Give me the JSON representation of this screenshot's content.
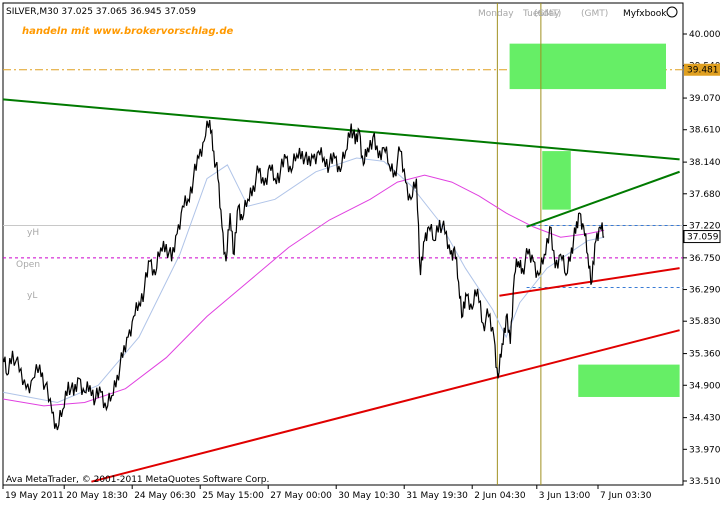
{
  "chart_data": {
    "type": "line",
    "symbol_header": "SILVER,M30  37.025 37.065 36.945 37.059",
    "watermark": "handeln mit www.brokervorschlag.de",
    "session_labels": [
      "Monday",
      "Tuesday",
      "(GMT)",
      "(GMT)"
    ],
    "brand": "Myfxbook",
    "copyright": "Ava MetaTrader, © 2001-2011 MetaQuotes Software Corp.",
    "level_labels": {
      "yh": "yH",
      "open": "Open",
      "yl": "yL"
    },
    "y_ticks": [
      "40.000",
      "39.540",
      "39.070",
      "38.610",
      "38.140",
      "37.680",
      "37.220",
      "36.750",
      "36.290",
      "35.830",
      "35.360",
      "34.900",
      "34.430",
      "33.970",
      "33.510"
    ],
    "x_ticks": [
      "19 May 2011",
      "20 May 18:30",
      "24 May 06:30",
      "25 May 15:00",
      "27 May 00:00",
      "30 May 10:30",
      "31 May 19:30",
      "2 Jun 04:30",
      "3 Jun 13:00",
      "7 Jun 03:30"
    ],
    "ylim": [
      33.51,
      40.0
    ],
    "current_price": "37.059",
    "level_price": "39.481",
    "levels": {
      "yh": 37.22,
      "open": 36.75,
      "yl": 36.32,
      "h_orange": 39.481
    },
    "price_points": [
      [
        0,
        35.3
      ],
      [
        0.006,
        35.05
      ],
      [
        0.014,
        35.4
      ],
      [
        0.024,
        35.1
      ],
      [
        0.034,
        34.85
      ],
      [
        0.044,
        35.0
      ],
      [
        0.054,
        35.2
      ],
      [
        0.062,
        34.9
      ],
      [
        0.072,
        34.5
      ],
      [
        0.08,
        34.25
      ],
      [
        0.088,
        34.55
      ],
      [
        0.096,
        34.95
      ],
      [
        0.104,
        34.75
      ],
      [
        0.112,
        35.0
      ],
      [
        0.12,
        34.8
      ],
      [
        0.128,
        34.9
      ],
      [
        0.136,
        34.7
      ],
      [
        0.144,
        34.8
      ],
      [
        0.152,
        34.55
      ],
      [
        0.16,
        34.75
      ],
      [
        0.168,
        35.05
      ],
      [
        0.176,
        35.3
      ],
      [
        0.184,
        35.6
      ],
      [
        0.192,
        35.9
      ],
      [
        0.2,
        36.1
      ],
      [
        0.208,
        36.3
      ],
      [
        0.216,
        36.7
      ],
      [
        0.224,
        36.5
      ],
      [
        0.232,
        36.9
      ],
      [
        0.24,
        36.95
      ],
      [
        0.248,
        36.7
      ],
      [
        0.256,
        37.1
      ],
      [
        0.264,
        37.5
      ],
      [
        0.272,
        37.6
      ],
      [
        0.28,
        37.9
      ],
      [
        0.288,
        38.2
      ],
      [
        0.296,
        38.45
      ],
      [
        0.304,
        38.75
      ],
      [
        0.31,
        38.3
      ],
      [
        0.316,
        37.9
      ],
      [
        0.322,
        37.2
      ],
      [
        0.328,
        36.7
      ],
      [
        0.334,
        37.4
      ],
      [
        0.34,
        36.8
      ],
      [
        0.346,
        37.5
      ],
      [
        0.352,
        37.3
      ],
      [
        0.36,
        37.6
      ],
      [
        0.368,
        37.8
      ],
      [
        0.376,
        38.0
      ],
      [
        0.384,
        37.8
      ],
      [
        0.392,
        38.1
      ],
      [
        0.4,
        37.9
      ],
      [
        0.408,
        38.0
      ],
      [
        0.416,
        38.2
      ],
      [
        0.424,
        38.0
      ],
      [
        0.432,
        38.25
      ],
      [
        0.44,
        38.3
      ],
      [
        0.448,
        38.1
      ],
      [
        0.456,
        38.2
      ],
      [
        0.464,
        38.3
      ],
      [
        0.472,
        38.2
      ],
      [
        0.48,
        38.1
      ],
      [
        0.488,
        38.2
      ],
      [
        0.496,
        38.0
      ],
      [
        0.504,
        38.3
      ],
      [
        0.512,
        38.7
      ],
      [
        0.518,
        38.4
      ],
      [
        0.524,
        38.6
      ],
      [
        0.53,
        38.1
      ],
      [
        0.536,
        38.35
      ],
      [
        0.544,
        38.5
      ],
      [
        0.552,
        38.2
      ],
      [
        0.56,
        38.35
      ],
      [
        0.568,
        38.1
      ],
      [
        0.576,
        38.0
      ],
      [
        0.584,
        38.3
      ],
      [
        0.592,
        37.85
      ],
      [
        0.6,
        37.6
      ],
      [
        0.608,
        37.9
      ],
      [
        0.614,
        36.5
      ],
      [
        0.62,
        37.0
      ],
      [
        0.626,
        37.2
      ],
      [
        0.634,
        37.0
      ],
      [
        0.642,
        37.3
      ],
      [
        0.65,
        37.1
      ],
      [
        0.658,
        36.8
      ],
      [
        0.664,
        36.9
      ],
      [
        0.67,
        36.4
      ],
      [
        0.676,
        35.9
      ],
      [
        0.682,
        36.2
      ],
      [
        0.69,
        36.0
      ],
      [
        0.698,
        36.3
      ],
      [
        0.706,
        35.8
      ],
      [
        0.714,
        35.9
      ],
      [
        0.722,
        35.6
      ],
      [
        0.728,
        35.0
      ],
      [
        0.734,
        35.5
      ],
      [
        0.74,
        35.9
      ],
      [
        0.746,
        35.5
      ],
      [
        0.752,
        36.5
      ],
      [
        0.758,
        36.7
      ],
      [
        0.764,
        36.6
      ],
      [
        0.772,
        36.8
      ],
      [
        0.78,
        36.7
      ],
      [
        0.788,
        36.5
      ],
      [
        0.796,
        36.8
      ],
      [
        0.804,
        37.2
      ],
      [
        0.812,
        36.6
      ],
      [
        0.82,
        36.8
      ],
      [
        0.828,
        36.5
      ],
      [
        0.836,
        36.9
      ],
      [
        0.842,
        37.1
      ],
      [
        0.848,
        37.4
      ],
      [
        0.854,
        37.2
      ],
      [
        0.86,
        36.8
      ],
      [
        0.866,
        36.4
      ],
      [
        0.872,
        37.0
      ],
      [
        0.878,
        37.2
      ],
      [
        0.884,
        37.05
      ]
    ],
    "ma_fast_points": [
      [
        0,
        34.8
      ],
      [
        0.08,
        34.65
      ],
      [
        0.14,
        34.9
      ],
      [
        0.2,
        35.6
      ],
      [
        0.26,
        36.8
      ],
      [
        0.3,
        37.9
      ],
      [
        0.33,
        38.1
      ],
      [
        0.36,
        37.5
      ],
      [
        0.4,
        37.6
      ],
      [
        0.46,
        38.0
      ],
      [
        0.52,
        38.2
      ],
      [
        0.56,
        38.15
      ],
      [
        0.6,
        37.8
      ],
      [
        0.64,
        37.3
      ],
      [
        0.68,
        36.6
      ],
      [
        0.72,
        36.0
      ],
      [
        0.74,
        35.6
      ],
      [
        0.76,
        36.1
      ],
      [
        0.8,
        36.6
      ],
      [
        0.86,
        37.0
      ],
      [
        0.884,
        37.05
      ]
    ],
    "ma_slow_points": [
      [
        0,
        34.7
      ],
      [
        0.06,
        34.6
      ],
      [
        0.12,
        34.65
      ],
      [
        0.18,
        34.85
      ],
      [
        0.24,
        35.3
      ],
      [
        0.3,
        35.9
      ],
      [
        0.36,
        36.4
      ],
      [
        0.42,
        36.9
      ],
      [
        0.48,
        37.3
      ],
      [
        0.54,
        37.6
      ],
      [
        0.58,
        37.85
      ],
      [
        0.62,
        37.95
      ],
      [
        0.66,
        37.85
      ],
      [
        0.7,
        37.65
      ],
      [
        0.74,
        37.4
      ],
      [
        0.78,
        37.2
      ],
      [
        0.82,
        37.05
      ],
      [
        0.86,
        37.1
      ],
      [
        0.884,
        37.15
      ]
    ],
    "trendlines": [
      {
        "color": "#007a00",
        "from": [
          0.0,
          39.05
        ],
        "to": [
          0.995,
          38.18
        ]
      },
      {
        "color": "#007a00",
        "from": [
          0.77,
          37.2
        ],
        "to": [
          0.995,
          38.0
        ]
      },
      {
        "color": "#e00000",
        "from": [
          0.13,
          33.5
        ],
        "to": [
          0.995,
          35.7
        ]
      },
      {
        "color": "#e00000",
        "from": [
          0.73,
          36.2
        ],
        "to": [
          0.995,
          36.6
        ]
      }
    ],
    "boxes": [
      {
        "color": "#66ee66",
        "x0": 0.745,
        "x1": 0.975,
        "y0": 39.86,
        "y1": 39.2
      },
      {
        "color": "#66ee66",
        "x0": 0.793,
        "x1": 0.835,
        "y0": 38.3,
        "y1": 37.45
      },
      {
        "color": "#66ee66",
        "x0": 0.846,
        "x1": 0.995,
        "y0": 35.2,
        "y1": 34.73
      }
    ],
    "vlines": [
      0.727,
      0.791
    ]
  }
}
